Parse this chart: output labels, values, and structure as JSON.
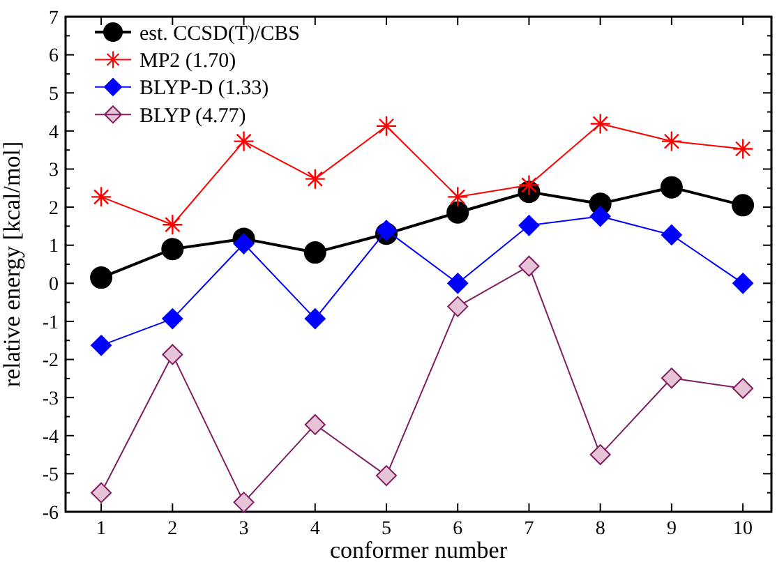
{
  "chart_data": {
    "type": "line",
    "xlabel": "conformer number",
    "ylabel": "relative energy [kcal/mol]",
    "x": [
      1,
      2,
      3,
      4,
      5,
      6,
      7,
      8,
      9,
      10
    ],
    "xlim": [
      0.5,
      10.4
    ],
    "xticks": [
      1,
      2,
      3,
      4,
      5,
      6,
      7,
      8,
      9,
      10
    ],
    "ylim": [
      -6,
      7
    ],
    "yticks": [
      -6,
      -5,
      -4,
      -3,
      -2,
      -1,
      0,
      1,
      2,
      3,
      4,
      5,
      6,
      7
    ],
    "grid": false,
    "legend": "top left",
    "series": [
      {
        "name": "est. CCSD(T)/CBS",
        "color": "#000000",
        "marker": "circle",
        "values": [
          0.15,
          0.9,
          1.17,
          0.81,
          1.3,
          1.86,
          2.4,
          2.09,
          2.52,
          2.05
        ]
      },
      {
        "name": "MP2 (1.70)",
        "color": "#ff0000",
        "marker": "cross",
        "values": [
          2.27,
          1.54,
          3.73,
          2.74,
          4.13,
          2.27,
          2.58,
          4.19,
          3.73,
          3.53
        ]
      },
      {
        "name": "BLYP-D (1.33)",
        "color": "#0000ff",
        "marker": "diamond",
        "values": [
          -1.63,
          -0.93,
          1.04,
          -0.93,
          1.39,
          0.0,
          1.52,
          1.76,
          1.27,
          0.0
        ]
      },
      {
        "name": "BLYP (4.77)",
        "color": "#7f1f5f",
        "marker": "diamond",
        "values": [
          -5.5,
          -1.87,
          -5.75,
          -3.71,
          -5.05,
          -0.61,
          0.45,
          -4.5,
          -2.49,
          -2.76
        ]
      }
    ]
  }
}
